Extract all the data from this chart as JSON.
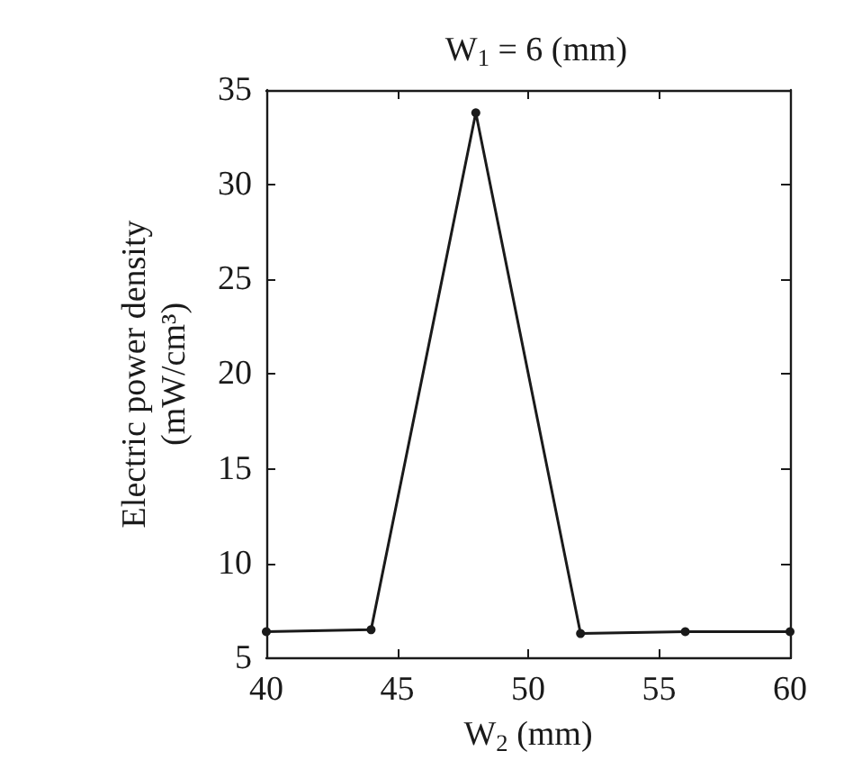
{
  "chart_data": {
    "type": "line",
    "title": "W$_{1}$ = 6 (mm)",
    "xlabel": "W$_{2}$ (mm)",
    "ylabel": "Electric power density\n(mW/cm³)",
    "x": [
      40,
      44,
      48,
      52,
      56,
      60
    ],
    "series": [
      {
        "color": "#1a1a1a",
        "values": [
          6.4,
          6.5,
          33.8,
          6.3,
          6.4,
          6.4
        ]
      }
    ],
    "xlim": [
      40,
      60
    ],
    "xticks": [
      40,
      45,
      50,
      55,
      60
    ],
    "ylim": [
      5,
      35
    ],
    "yticks": [
      5,
      10,
      15,
      20,
      25,
      30,
      35
    ],
    "grid": false,
    "marker": "circle",
    "line_style": "solid"
  }
}
